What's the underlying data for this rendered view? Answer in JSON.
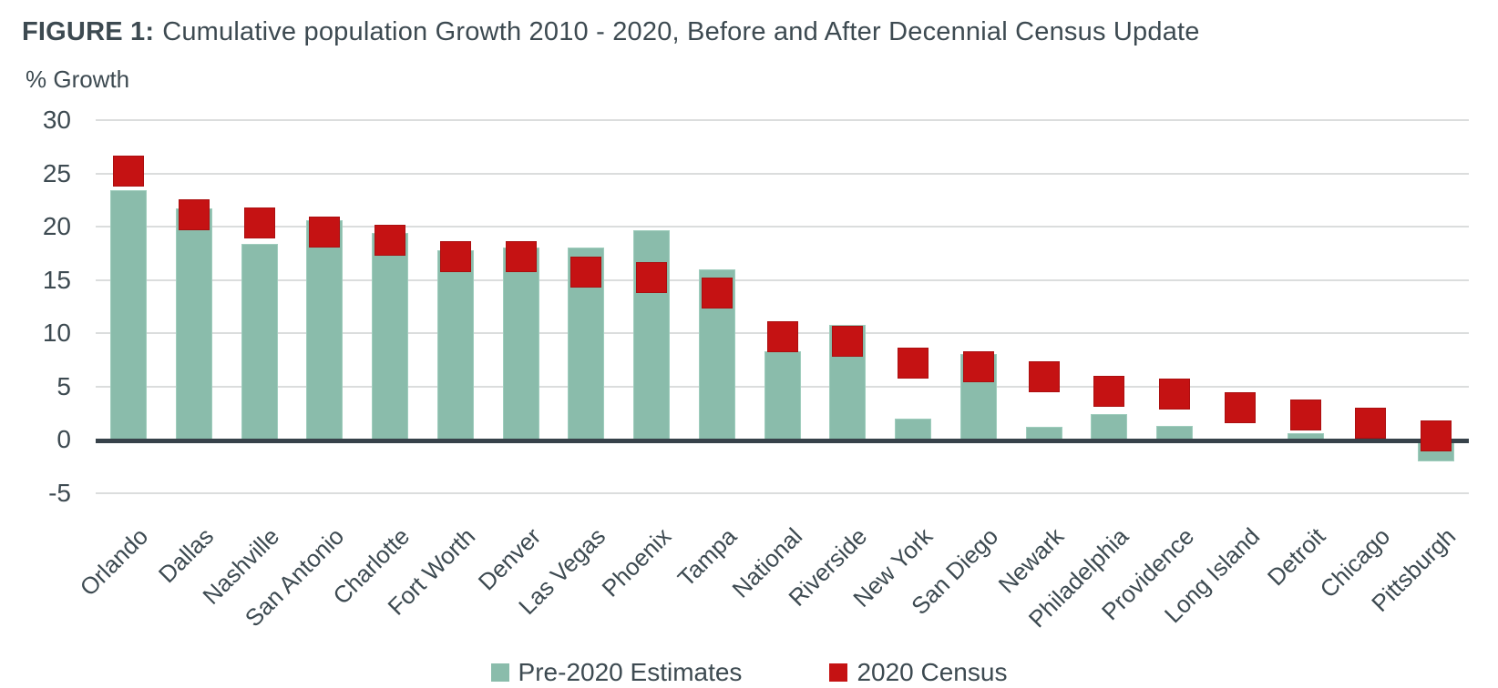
{
  "title": {
    "prefix": "FIGURE 1:",
    "rest": "Cumulative population Growth 2010 - 2020, Before and After Decennial Census Update"
  },
  "y_axis_title": "% Growth",
  "legend": {
    "items": [
      {
        "label": "Pre-2020 Estimates",
        "color": "#8abcab"
      },
      {
        "label": "2020 Census",
        "color": "#c51213"
      }
    ]
  },
  "colors": {
    "teal_bar": "#8abcab",
    "red_marker": "#c51213",
    "text": "#3d4a51",
    "gridline": "#dbdddd",
    "zero_axis": "#37424a",
    "background": "#ffffff"
  },
  "chart_data": {
    "type": "bar",
    "title": "FIGURE 1: Cumulative population Growth 2010 - 2020, Before and After Decennial Census Update",
    "xlabel": "",
    "ylabel": "% Growth",
    "ylim": [
      -5,
      30
    ],
    "yticks": [
      30,
      25,
      20,
      15,
      10,
      5,
      0,
      -5
    ],
    "grid": true,
    "legend_position": "bottom",
    "categories": [
      "Orlando",
      "Dallas",
      "Nashville",
      "San Antonio",
      "Charlotte",
      "Fort Worth",
      "Denver",
      "Las Vegas",
      "Phoenix",
      "Tampa",
      "National",
      "Riverside",
      "New York",
      "San Diego",
      "Newark",
      "Philadelphia",
      "Providence",
      "Long Island",
      "Detroit",
      "Chicago",
      "Pittsburgh"
    ],
    "series": [
      {
        "name": "Pre-2020 Estimates",
        "mark": "bar",
        "color": "#8abcab",
        "values": [
          23.4,
          21.7,
          18.4,
          20.6,
          19.4,
          17.8,
          18.0,
          18.0,
          19.7,
          16.0,
          8.3,
          10.8,
          2.0,
          8.0,
          1.2,
          2.4,
          1.3,
          0,
          0.6,
          0,
          -1.9
        ]
      },
      {
        "name": "2020 Census",
        "mark": "square",
        "color": "#c51213",
        "values": [
          25.2,
          21.1,
          20.3,
          19.5,
          18.7,
          17.2,
          17.2,
          15.7,
          15.2,
          13.8,
          9.7,
          9.2,
          7.2,
          6.8,
          5.9,
          4.5,
          4.3,
          3.0,
          2.3,
          1.5,
          0.3
        ]
      }
    ]
  }
}
